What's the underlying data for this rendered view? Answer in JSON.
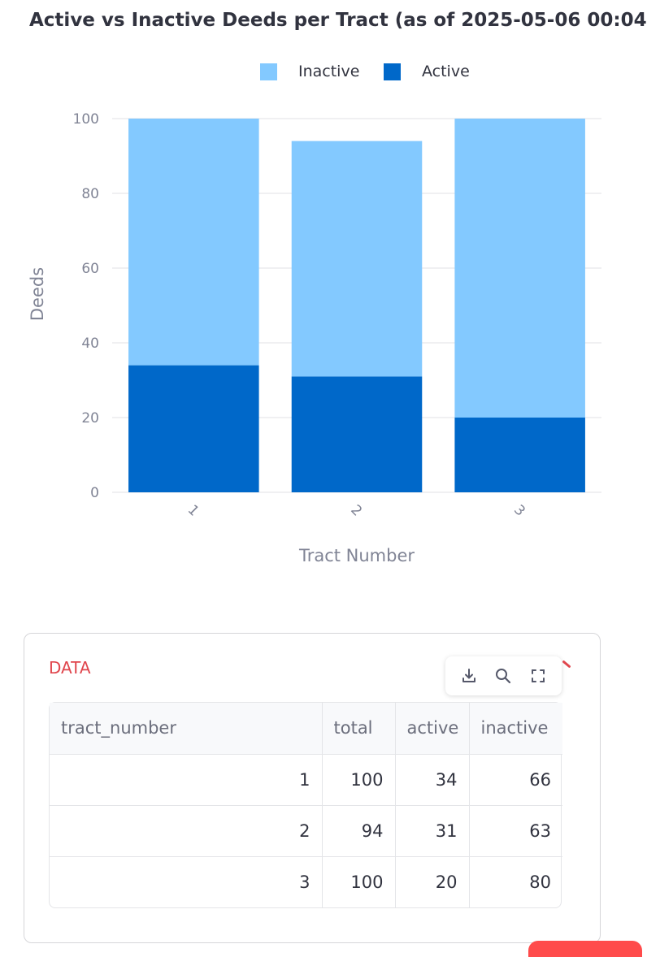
{
  "chart_data": {
    "type": "bar",
    "stacked": true,
    "title": "Active vs Inactive Deeds per Tract (as of 2025-05-06 00:04",
    "xlabel": "Tract Number",
    "ylabel": "Deeds",
    "categories": [
      "1",
      "2",
      "3"
    ],
    "ylim": [
      0,
      100
    ],
    "yticks": [
      0,
      20,
      40,
      60,
      80,
      100
    ],
    "grid": true,
    "legend_position": "top-center",
    "series": [
      {
        "name": "Active",
        "values": [
          34,
          31,
          20
        ],
        "color": "#0068c9"
      },
      {
        "name": "Inactive",
        "values": [
          66,
          63,
          80
        ],
        "color": "#83c9ff"
      }
    ]
  },
  "legend": {
    "items": [
      {
        "label": "Inactive",
        "color": "#83c9ff"
      },
      {
        "label": "Active",
        "color": "#0068c9"
      }
    ]
  },
  "data_panel": {
    "label": "DATA",
    "toolbar": [
      "download-icon",
      "search-icon",
      "fullscreen-icon"
    ],
    "columns": [
      "tract_number",
      "total",
      "active",
      "inactive"
    ],
    "rows": [
      [
        "1",
        "100",
        "34",
        "66"
      ],
      [
        "2",
        "94",
        "31",
        "63"
      ],
      [
        "3",
        "100",
        "20",
        "80"
      ]
    ]
  }
}
